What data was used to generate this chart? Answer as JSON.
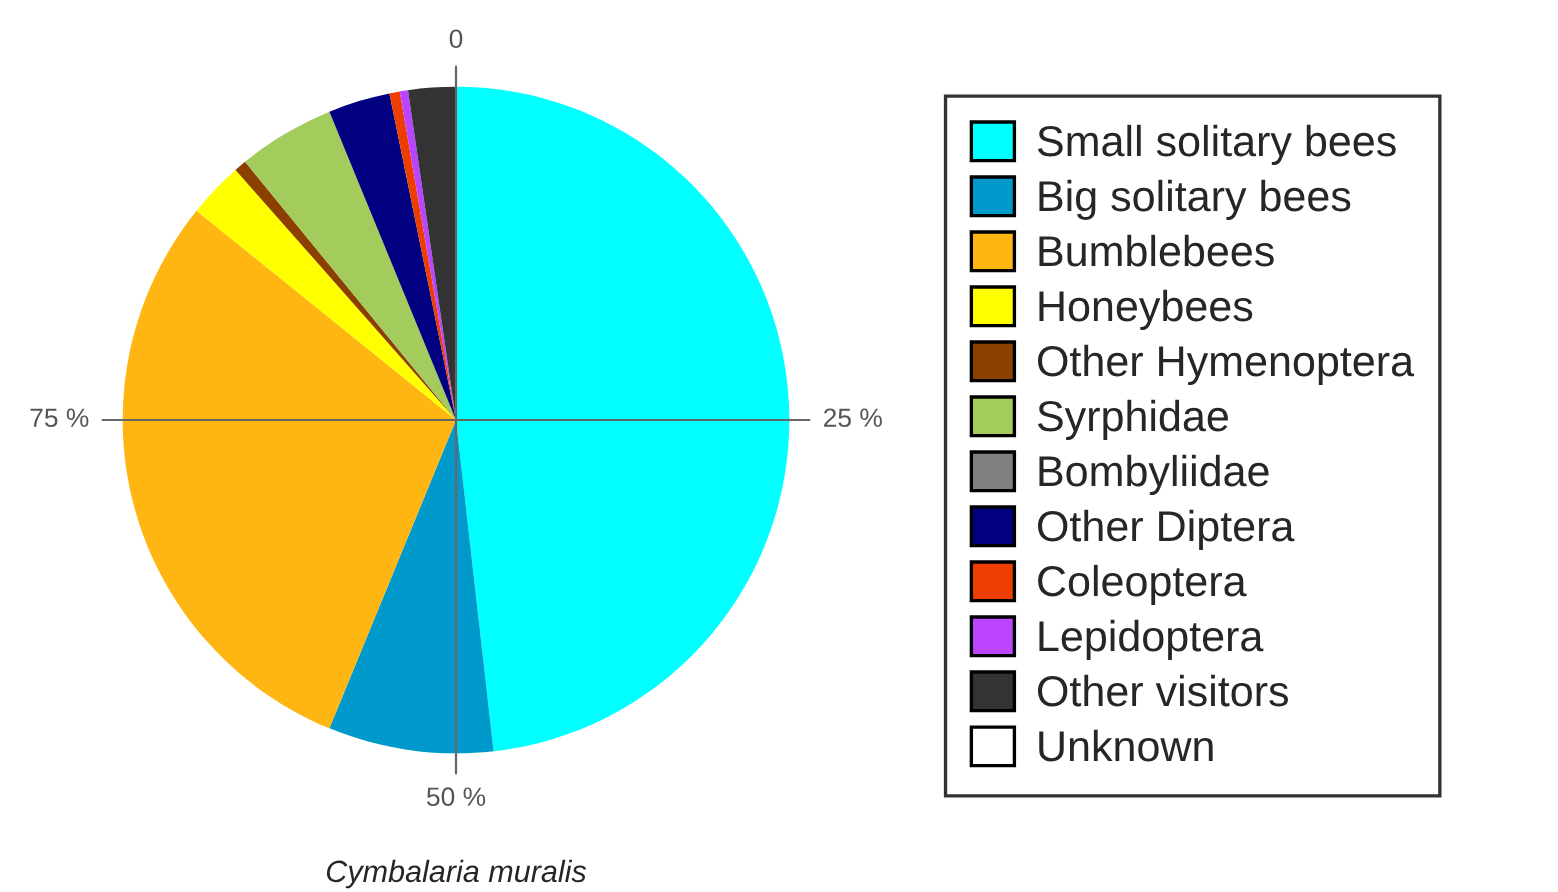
{
  "chart_data": {
    "type": "pie",
    "title": "Cymbalaria muralis",
    "categories": [
      "Small solitary bees",
      "Big solitary bees",
      "Bumblebees",
      "Honeybees",
      "Other Hymenoptera",
      "Syrphidae",
      "Bombyliidae",
      "Other Diptera",
      "Coleoptera",
      "Lepidoptera",
      "Other visitors",
      "Unknown"
    ],
    "values": [
      48.2,
      8.0,
      29.6,
      2.7,
      0.6,
      4.7,
      0,
      3.0,
      0.5,
      0.4,
      2.3,
      0
    ],
    "colors": [
      "#00ffff",
      "#0099cc",
      "#ffb612",
      "#ffff00",
      "#8b4000",
      "#a3cc5c",
      "#808080",
      "#000080",
      "#ee3d00",
      "#bb44ff",
      "#333333",
      "#ffffff"
    ],
    "annotations": [
      "0",
      "25 %",
      "50 %",
      "75 %"
    ],
    "legend": "right"
  }
}
